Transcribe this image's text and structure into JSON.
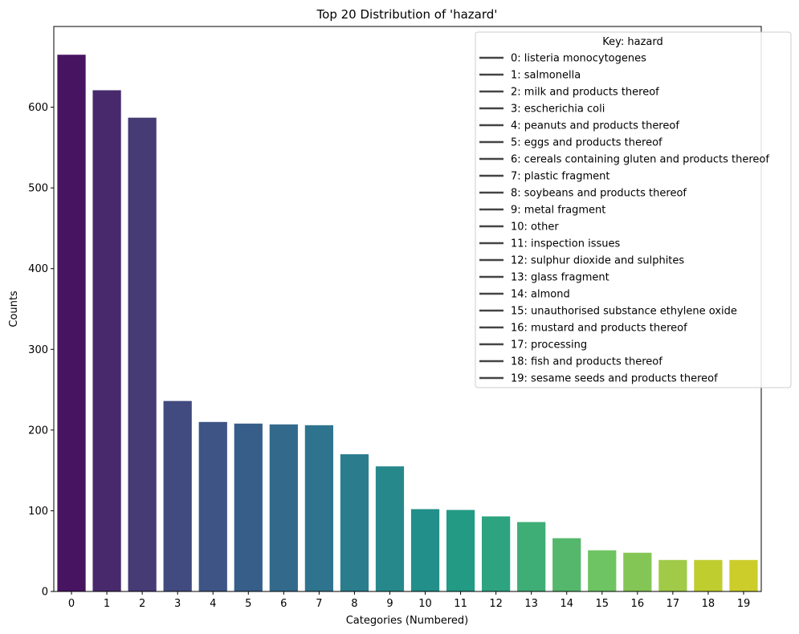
{
  "chart_data": {
    "type": "bar",
    "title": "Top 20 Distribution of 'hazard'",
    "xlabel": "Categories (Numbered)",
    "ylabel": "Counts",
    "ylim": [
      0,
      700
    ],
    "yticks": [
      0,
      100,
      200,
      300,
      400,
      500,
      600
    ],
    "categories": [
      "0",
      "1",
      "2",
      "3",
      "4",
      "5",
      "6",
      "7",
      "8",
      "9",
      "10",
      "11",
      "12",
      "13",
      "14",
      "15",
      "16",
      "17",
      "18",
      "19"
    ],
    "values": [
      665,
      621,
      587,
      236,
      210,
      208,
      207,
      206,
      170,
      155,
      102,
      101,
      93,
      86,
      66,
      51,
      48,
      39,
      39,
      39
    ],
    "colors": [
      "#471461",
      "#482a6c",
      "#463b75",
      "#424b7f",
      "#3d5485",
      "#375e89",
      "#336a8c",
      "#2f748e",
      "#2b7d8e",
      "#27888c",
      "#228f8a",
      "#229a84",
      "#2da37f",
      "#3fad76",
      "#55b76c",
      "#6ec462",
      "#84c656",
      "#a0ca48",
      "#bfcd2f",
      "#cccd2a"
    ],
    "legend": {
      "title": "Key: hazard",
      "placement": "top-right",
      "entries": [
        "0: listeria monocytogenes",
        "1: salmonella",
        "2: milk and products thereof",
        "3: escherichia coli",
        "4: peanuts and products thereof",
        "5: eggs and products thereof",
        "6: cereals containing gluten and products thereof",
        "7: plastic fragment",
        "8: soybeans and products thereof",
        "9: metal fragment",
        "10: other",
        "11: inspection issues",
        "12: sulphur dioxide and sulphites",
        "13: glass fragment",
        "14: almond",
        "15: unauthorised substance ethylene oxide",
        "16: mustard and products thereof",
        "17: processing",
        "18: fish and products thereof",
        "19: sesame seeds and products thereof"
      ]
    },
    "grid": false
  }
}
